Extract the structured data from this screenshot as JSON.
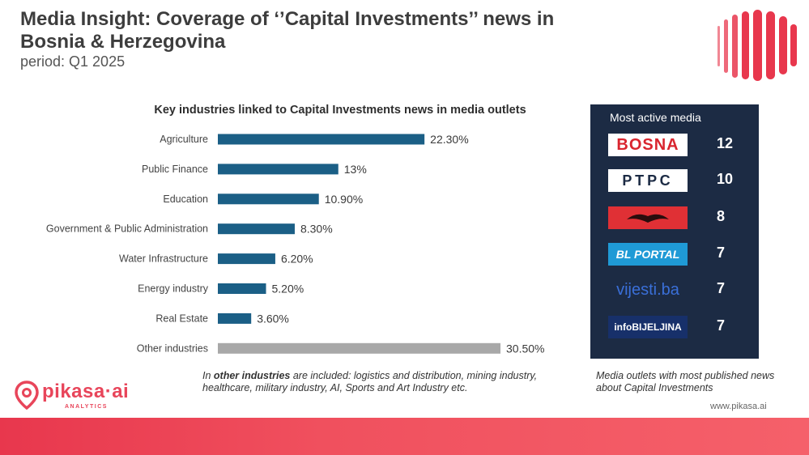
{
  "header": {
    "title": "Media Insight: Coverage of ‘’Capital Investments’’ news in Bosnia & Herzegovina",
    "period": "period: Q1 2025"
  },
  "chart_data": {
    "type": "bar",
    "orientation": "horizontal",
    "title": "Key industries linked to Capital Investments news in media outlets",
    "categories": [
      "Agriculture",
      "Public Finance",
      "Education",
      "Government & Public Administration",
      "Water Infrastructure",
      "Energy industry",
      "Real Estate",
      "Other industries"
    ],
    "values": [
      22.3,
      13,
      10.9,
      8.3,
      6.2,
      5.2,
      3.6,
      30.5
    ],
    "value_labels": [
      "22.30%",
      "13%",
      "10.90%",
      "8.30%",
      "6.20%",
      "5.20%",
      "3.60%",
      "30.50%"
    ],
    "colors": [
      "#1b5f86",
      "#1b5f86",
      "#1b5f86",
      "#1b5f86",
      "#1b5f86",
      "#1b5f86",
      "#1b5f86",
      "#a8a8a8"
    ],
    "xlim": [
      0,
      30.5
    ],
    "grid": false
  },
  "note": {
    "prefix": "In ",
    "bold": "other industries",
    "suffix": " are included: logistics and distribution, mining industry, healthcare, military industry, AI, Sports and Art Industry etc."
  },
  "media": {
    "title": "Most active media",
    "outlets": [
      {
        "logo_text": "BOSNA",
        "count": "12",
        "logo_bg": "#ffffff",
        "logo_fg": "#d9252f",
        "icon": "bosna-logo"
      },
      {
        "logo_text": "РТРС",
        "count": "10",
        "logo_bg": "#ffffff",
        "logo_fg": "#1c2b44",
        "icon": "rtrs-logo"
      },
      {
        "logo_text": "",
        "count": "8",
        "logo_bg": "#e03035",
        "logo_fg": "#2a0d0d",
        "icon": "eagle-logo"
      },
      {
        "logo_text": "BL PORTAL",
        "count": "7",
        "logo_bg": "#1f9ad6",
        "logo_fg": "#ffffff",
        "icon": "bl-portal-logo"
      },
      {
        "logo_text": "vijesti.ba",
        "count": "7",
        "logo_bg": "#1c2b44",
        "logo_fg": "#3a6fd8",
        "icon": "vijesti-logo"
      },
      {
        "logo_text": "infoBIJELJINA",
        "count": "7",
        "logo_bg": "#17306a",
        "logo_fg": "#ffffff",
        "icon": "info-bijeljina-logo"
      }
    ],
    "note": "Media outlets with most published news about Capital Investments"
  },
  "brand": {
    "name": "pikasa·ai",
    "sub": "ANALYTICS",
    "website": "www.pikasa.ai",
    "accent": "#e8455a"
  }
}
